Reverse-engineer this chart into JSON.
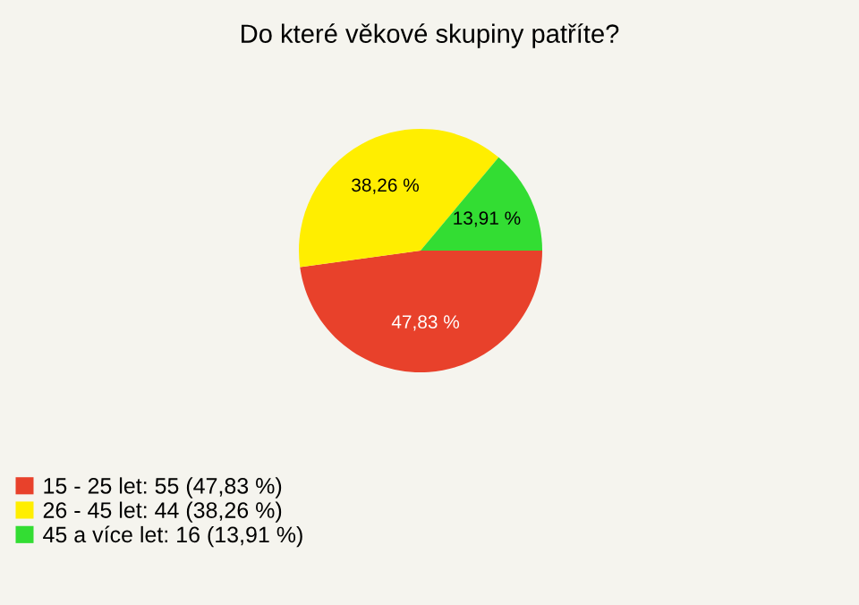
{
  "chart_data": {
    "type": "pie",
    "title": "Do které věkové skupiny patříte?",
    "categories": [
      "15 - 25 let: 55 (47,83 %)",
      "26 - 45 let: 44 (38,26 %)",
      "45 a více let: 16 (13,91 %)"
    ],
    "values": [
      47.83,
      38.26,
      13.91
    ],
    "value_labels": [
      "47,83 %",
      "38,26 %",
      "13,91 %"
    ],
    "colors": [
      "#e8412b",
      "#ffee00",
      "#33dd33"
    ],
    "legend": "bottom left"
  }
}
